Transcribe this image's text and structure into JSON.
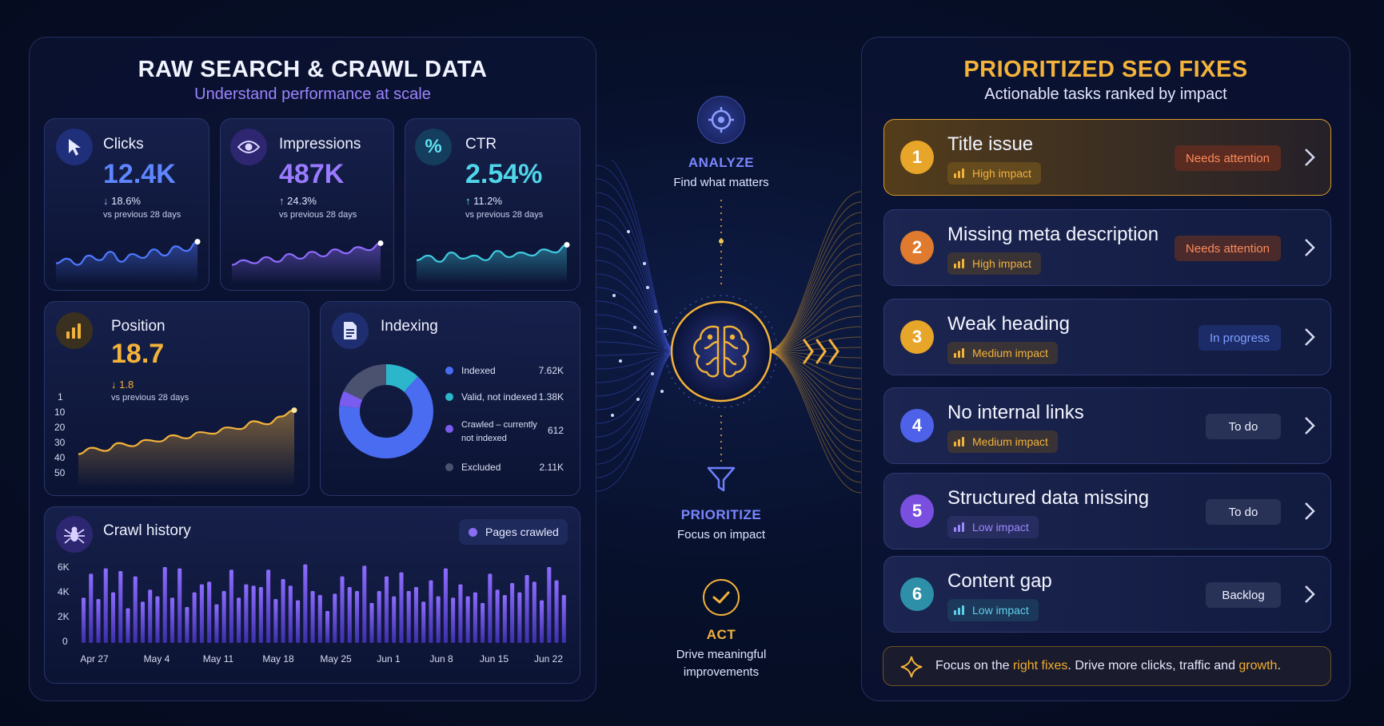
{
  "left": {
    "title": "RAW SEARCH & CRAWL DATA",
    "subtitle": "Understand performance at scale",
    "clicks": {
      "label": "Clicks",
      "value": "12.4K",
      "change": "18.6%",
      "vs": "vs previous 28 days",
      "trend": "down",
      "icon": "cursor-icon"
    },
    "impressions": {
      "label": "Impressions",
      "value": "487K",
      "change": "24.3%",
      "vs": "vs previous 28 days",
      "trend": "up",
      "icon": "eye-icon"
    },
    "ctr": {
      "label": "CTR",
      "value": "2.54%",
      "change": "11.2%",
      "vs": "vs previous 28 days",
      "trend": "up",
      "icon": "percent-icon"
    },
    "position": {
      "label": "Position",
      "value": "18.7",
      "change": "1.8",
      "vs": "vs previous 28 days",
      "trend": "down",
      "icon": "bar-chart-icon",
      "axis": [
        "1",
        "10",
        "20",
        "30",
        "40",
        "50"
      ]
    },
    "indexing": {
      "label": "Indexing",
      "icon": "document-icon",
      "legend": [
        {
          "name": "Indexed",
          "value": "7.62K",
          "color": "#4a6cf0"
        },
        {
          "name": "Valid, not indexed",
          "value": "1.38K",
          "color": "#2bb6cc"
        },
        {
          "name": "Crawled – currently not indexed",
          "value": "612",
          "color": "#7b5cf0"
        },
        {
          "name": "Excluded",
          "value": "2.11K",
          "color": "#4a5270"
        }
      ]
    },
    "crawl": {
      "label": "Crawl history",
      "legend": "Pages crawled",
      "icon": "spider-icon",
      "y_axis": [
        "6K",
        "4K",
        "2K",
        "0"
      ],
      "x_axis": [
        "Apr 27",
        "May 4",
        "May 11",
        "May 18",
        "May 25",
        "Jun 1",
        "Jun 8",
        "Jun 15",
        "Jun 22"
      ]
    }
  },
  "flow": {
    "analyze": {
      "title": "ANALYZE",
      "sub": "Find what matters"
    },
    "prioritize": {
      "title": "PRIORITIZE",
      "sub": "Focus on impact"
    },
    "act": {
      "title": "ACT",
      "sub": "Drive meaningful improvements"
    }
  },
  "right": {
    "title": "PRIORITIZED SEO FIXES",
    "subtitle": "Actionable tasks ranked by impact",
    "fixes": [
      {
        "num": "1",
        "title": "Title issue",
        "impact": "High impact",
        "status": "Needs attention",
        "color": "#e7a529"
      },
      {
        "num": "2",
        "title": "Missing meta description",
        "impact": "High impact",
        "status": "Needs attention",
        "color": "#e07a2e"
      },
      {
        "num": "3",
        "title": "Weak heading",
        "impact": "Medium impact",
        "status": "In progress",
        "color": "#e7a529"
      },
      {
        "num": "4",
        "title": "No internal links",
        "impact": "Medium impact",
        "status": "To do",
        "color": "#4d62e8"
      },
      {
        "num": "5",
        "title": "Structured data missing",
        "impact": "Low impact",
        "status": "To do",
        "color": "#7a4fe0"
      },
      {
        "num": "6",
        "title": "Content gap",
        "impact": "Low impact",
        "status": "Backlog",
        "color": "#2e8fa8"
      }
    ],
    "tip": {
      "t1": "Focus on the ",
      "h1": "right fixes",
      "t2": ". Drive more clicks, traffic and ",
      "h2": "growth",
      "t3": "."
    }
  },
  "chart_data": [
    {
      "type": "line",
      "title": "Clicks",
      "values": [
        40,
        46,
        38,
        50,
        44,
        55,
        42,
        52,
        47,
        58,
        50,
        62,
        56,
        68
      ]
    },
    {
      "type": "line",
      "title": "Impressions",
      "values": [
        38,
        44,
        40,
        48,
        42,
        52,
        46,
        55,
        49,
        58,
        53,
        61,
        57,
        66
      ]
    },
    {
      "type": "line",
      "title": "CTR",
      "values": [
        44,
        50,
        42,
        54,
        46,
        50,
        44,
        56,
        48,
        54,
        50,
        58,
        54,
        64
      ]
    },
    {
      "type": "line",
      "title": "Position",
      "ylim": [
        50,
        1
      ],
      "values": [
        38,
        34,
        36,
        31,
        33,
        29,
        30,
        26,
        28,
        24,
        25,
        21,
        22,
        17,
        19,
        14,
        10
      ]
    },
    {
      "type": "pie",
      "title": "Indexing",
      "categories": [
        "Indexed",
        "Valid, not indexed",
        "Crawled – currently not indexed",
        "Excluded"
      ],
      "values": [
        7620,
        1380,
        612,
        2110
      ]
    },
    {
      "type": "bar",
      "title": "Crawl history",
      "ylim": [
        0,
        6000
      ],
      "values": [
        3400,
        5200,
        3300,
        5600,
        3800,
        5400,
        2600,
        5000,
        3100,
        4000,
        3500,
        5700,
        3400,
        5600,
        2700,
        3800,
        4400,
        4600,
        2900,
        3900,
        5500,
        3400,
        4400,
        4300,
        4200,
        5500,
        3300,
        4800,
        4300,
        3200,
        5900,
        3900,
        3600,
        2400,
        3700,
        5000,
        4200,
        3900,
        5800,
        3000,
        3900,
        5000,
        3500,
        5300,
        3900,
        4200,
        3100,
        4700,
        3500,
        5600,
        3400,
        4400,
        3500,
        3800,
        3000,
        5200,
        4000,
        3600,
        4500,
        3800,
        5100,
        4600,
        3200,
        5700,
        4700,
        3600
      ]
    }
  ]
}
